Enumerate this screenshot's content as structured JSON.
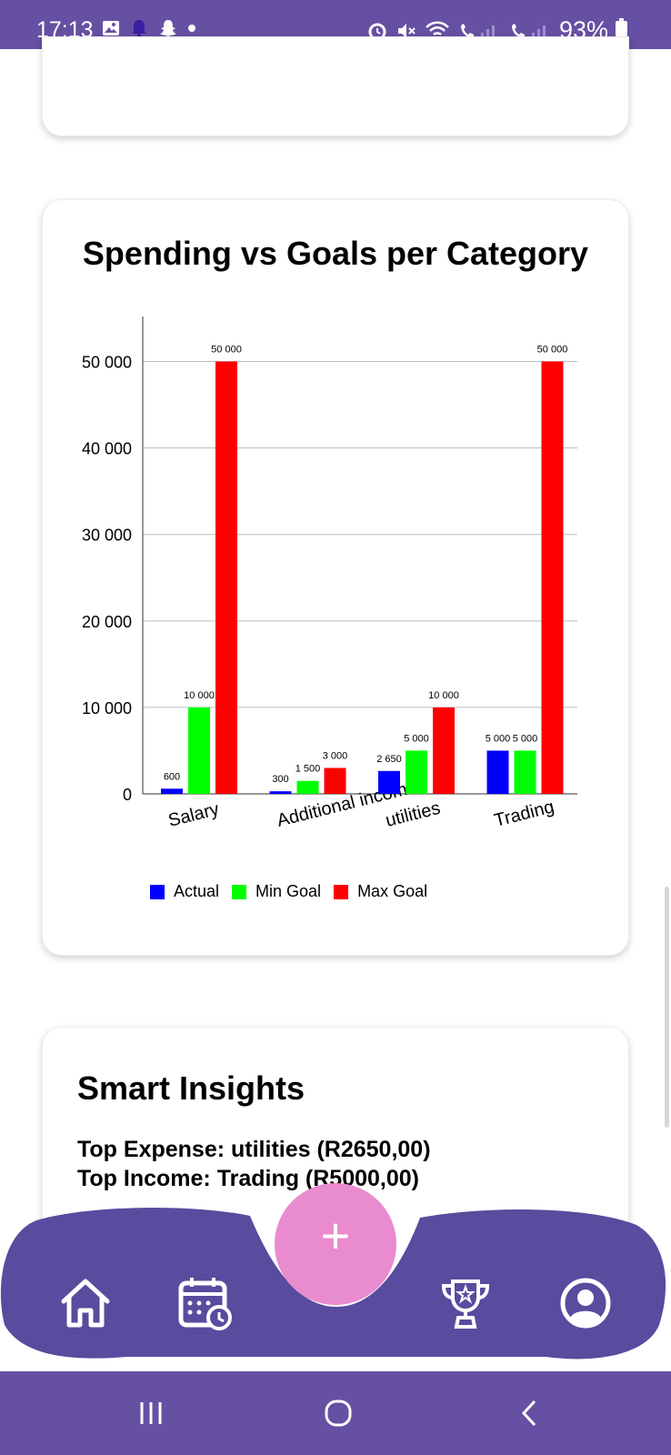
{
  "status_bar": {
    "time": "17:13",
    "battery": "93%"
  },
  "chart_card": {
    "title": "Spending vs Goals per Category"
  },
  "chart_data": {
    "type": "bar",
    "categories": [
      "Salary",
      "Additional income",
      "utilities",
      "Trading"
    ],
    "series": [
      {
        "name": "Actual",
        "color": "#0000ff",
        "values": [
          600,
          300,
          2650,
          5000
        ]
      },
      {
        "name": "Min Goal",
        "color": "#00ff00",
        "values": [
          10000,
          1500,
          5000,
          5000
        ]
      },
      {
        "name": "Max Goal",
        "color": "#ff0000",
        "values": [
          50000,
          3000,
          10000,
          50000
        ]
      }
    ],
    "data_labels": [
      [
        "600",
        "300",
        "2 650",
        "5 000"
      ],
      [
        "10 000",
        "1 500",
        "5 000",
        "5 000"
      ],
      [
        "50 000",
        "3 000",
        "10 000",
        "50 000"
      ]
    ],
    "yticks": [
      {
        "value": 0,
        "label": "0"
      },
      {
        "value": 10000,
        "label": "10 000"
      },
      {
        "value": 20000,
        "label": "20 000"
      },
      {
        "value": 30000,
        "label": "30 000"
      },
      {
        "value": 40000,
        "label": "40 000"
      },
      {
        "value": 50000,
        "label": "50 000"
      }
    ],
    "ylim": [
      0,
      55000
    ],
    "grid": true,
    "legend": "bottom"
  },
  "insights": {
    "title": "Smart Insights",
    "top_expense": "Top Expense: utilities (R2650,00)",
    "top_income": "Top Income: Trading (R5000,00)"
  },
  "bottom_nav": {
    "fab_label": "+",
    "items": [
      {
        "icon": "home-icon"
      },
      {
        "icon": "calendar-icon"
      },
      {
        "icon": "trophy-icon"
      },
      {
        "icon": "profile-icon"
      }
    ]
  }
}
